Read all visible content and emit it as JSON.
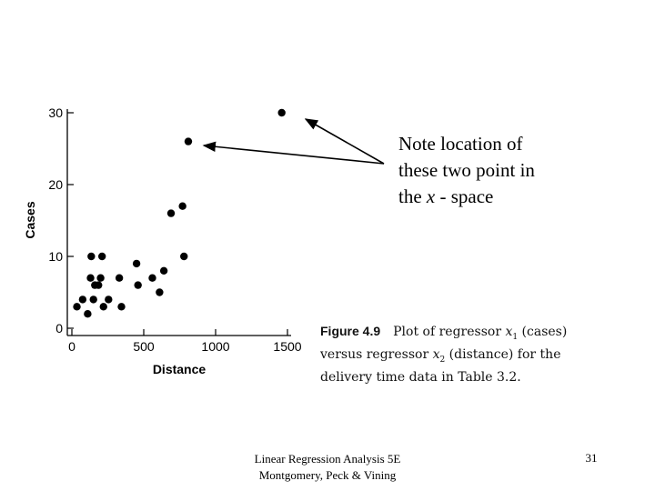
{
  "chart_data": {
    "type": "scatter",
    "xlabel": "Distance",
    "ylabel": "Cases",
    "xlim": [
      0,
      1500
    ],
    "ylim": [
      0,
      30
    ],
    "x_ticks": [
      0,
      500,
      1000,
      1500
    ],
    "y_ticks": [
      0,
      10,
      20,
      30
    ],
    "x_tick_labels": [
      "0",
      "500",
      "1000",
      "1500"
    ],
    "y_tick_labels": [
      "0",
      "10",
      "20",
      "30"
    ],
    "grid": false,
    "points": [
      {
        "x": 35,
        "y": 3
      },
      {
        "x": 75,
        "y": 4
      },
      {
        "x": 110,
        "y": 2
      },
      {
        "x": 130,
        "y": 7
      },
      {
        "x": 135,
        "y": 10
      },
      {
        "x": 150,
        "y": 4
      },
      {
        "x": 160,
        "y": 6
      },
      {
        "x": 185,
        "y": 6
      },
      {
        "x": 200,
        "y": 7
      },
      {
        "x": 210,
        "y": 10
      },
      {
        "x": 220,
        "y": 3
      },
      {
        "x": 255,
        "y": 4
      },
      {
        "x": 330,
        "y": 7
      },
      {
        "x": 345,
        "y": 3
      },
      {
        "x": 450,
        "y": 9
      },
      {
        "x": 460,
        "y": 6
      },
      {
        "x": 560,
        "y": 7
      },
      {
        "x": 610,
        "y": 5
      },
      {
        "x": 640,
        "y": 8
      },
      {
        "x": 690,
        "y": 16
      },
      {
        "x": 770,
        "y": 17
      },
      {
        "x": 780,
        "y": 10
      },
      {
        "x": 810,
        "y": 26
      },
      {
        "x": 1460,
        "y": 30
      }
    ]
  },
  "annotation": {
    "line1": "Note location of",
    "line2": "these two point in",
    "line3_prefix": "the ",
    "line3_var": "x",
    "line3_suffix": " - space"
  },
  "caption": {
    "figure_label": "Figure 4.9",
    "text_a": "Plot of regressor ",
    "var1": "x",
    "sub1": "1",
    "text_b": " (cases) versus regressor ",
    "var2": "x",
    "sub2": "2",
    "text_c": " (distance) for the delivery time data in Table 3.2."
  },
  "footer": {
    "line1": "Linear Regression Analysis 5E",
    "line2": "Montgomery, Peck & Vining"
  },
  "page_number": "31",
  "colors": {
    "points": "#000000",
    "axis": "#000000",
    "arrow": "#000000"
  }
}
